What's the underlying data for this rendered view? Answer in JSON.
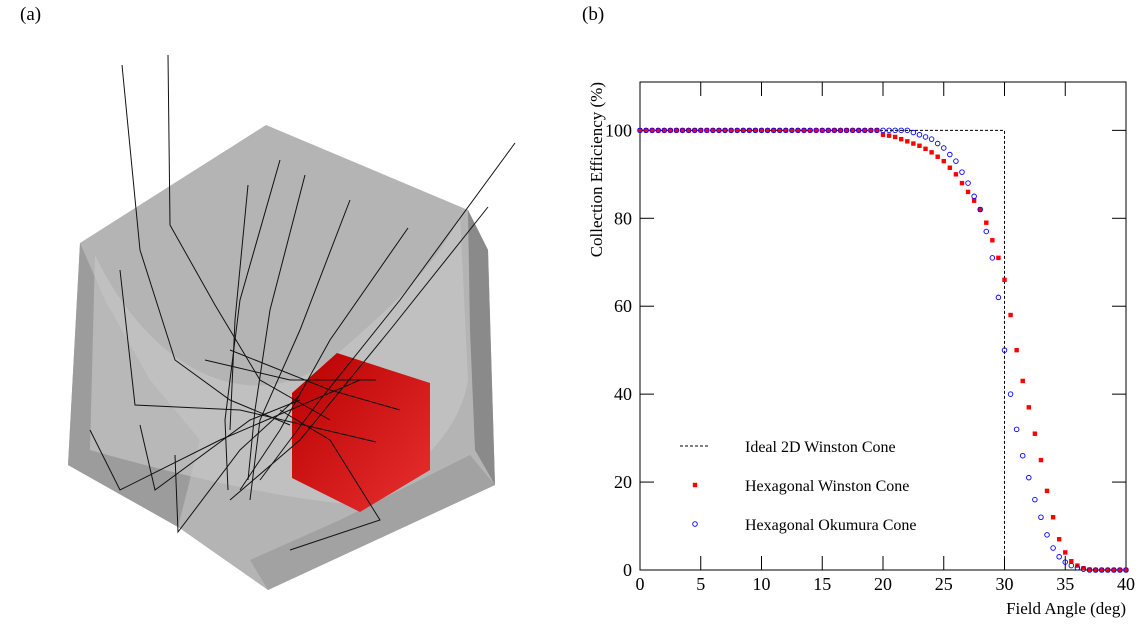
{
  "panel_labels": [
    "(a)",
    "(b)"
  ],
  "chart_data": {
    "type": "scatter",
    "xlabel": "Field Angle (deg)",
    "ylabel": "Collection Efficiency (%)",
    "xlim": [
      0,
      40
    ],
    "ylim": [
      0,
      111
    ],
    "xticks": [
      0,
      5,
      10,
      15,
      20,
      25,
      30,
      35,
      40
    ],
    "yticks": [
      0,
      20,
      40,
      60,
      80,
      100
    ],
    "legend": "lower left",
    "series": [
      {
        "name": "Ideal 2D Winston Cone",
        "type": "line",
        "dash": true,
        "color": "#000000",
        "x": [
          0,
          30,
          30
        ],
        "values": [
          100,
          100,
          0
        ]
      },
      {
        "name": "Hexagonal Winston Cone",
        "type": "scatter",
        "marker": "square",
        "color": "#ff0000",
        "x": [
          0,
          0.5,
          1,
          1.5,
          2,
          2.5,
          3,
          3.5,
          4,
          4.5,
          5,
          5.5,
          6,
          6.5,
          7,
          7.5,
          8,
          8.5,
          9,
          9.5,
          10,
          10.5,
          11,
          11.5,
          12,
          12.5,
          13,
          13.5,
          14,
          14.5,
          15,
          15.5,
          16,
          16.5,
          17,
          17.5,
          18,
          18.5,
          19,
          19.5,
          20,
          20.5,
          21,
          21.5,
          22,
          22.5,
          23,
          23.5,
          24,
          24.5,
          25,
          25.5,
          26,
          26.5,
          27,
          27.5,
          28,
          28.5,
          29,
          29.5,
          30,
          30.5,
          31,
          31.5,
          32,
          32.5,
          33,
          33.5,
          34,
          34.5,
          35,
          35.5,
          36,
          36.5,
          37,
          37.5,
          38,
          38.5,
          39,
          39.5,
          40
        ],
        "values": [
          100,
          100,
          100,
          100,
          100,
          100,
          100,
          100,
          100,
          100,
          100,
          100,
          100,
          100,
          100,
          100,
          100,
          100,
          100,
          100,
          100,
          100,
          100,
          100,
          100,
          100,
          100,
          100,
          100,
          100,
          100,
          100,
          100,
          100,
          100,
          100,
          100,
          100,
          100,
          100,
          99,
          98.8,
          98.5,
          98,
          97.5,
          97,
          96.5,
          95.8,
          95,
          94,
          93,
          91.5,
          90,
          88,
          86,
          84,
          82,
          79,
          75,
          71,
          66,
          58,
          50,
          43,
          37,
          31,
          25,
          18,
          12,
          7,
          4,
          2,
          1,
          0.4,
          0.1,
          0,
          0,
          0,
          0,
          0,
          0
        ]
      },
      {
        "name": "Hexagonal Okumura Cone",
        "type": "scatter",
        "marker": "circle",
        "color": "#0000ff",
        "x": [
          0,
          0.5,
          1,
          1.5,
          2,
          2.5,
          3,
          3.5,
          4,
          4.5,
          5,
          5.5,
          6,
          6.5,
          7,
          7.5,
          8,
          8.5,
          9,
          9.5,
          10,
          10.5,
          11,
          11.5,
          12,
          12.5,
          13,
          13.5,
          14,
          14.5,
          15,
          15.5,
          16,
          16.5,
          17,
          17.5,
          18,
          18.5,
          19,
          19.5,
          20,
          20.5,
          21,
          21.5,
          22,
          22.5,
          23,
          23.5,
          24,
          24.5,
          25,
          25.5,
          26,
          26.5,
          27,
          27.5,
          28,
          28.5,
          29,
          29.5,
          30,
          30.5,
          31,
          31.5,
          32,
          32.5,
          33,
          33.5,
          34,
          34.5,
          35,
          35.5,
          36,
          36.5,
          37,
          37.5,
          38,
          38.5,
          39,
          39.5,
          40
        ],
        "values": [
          100,
          100,
          100,
          100,
          100,
          100,
          100,
          100,
          100,
          100,
          100,
          100,
          100,
          100,
          100,
          100,
          100,
          100,
          100,
          100,
          100,
          100,
          100,
          100,
          100,
          100,
          100,
          100,
          100,
          100,
          100,
          100,
          100,
          100,
          100,
          100,
          100,
          100,
          100,
          100,
          100,
          100,
          100,
          100,
          100,
          99.5,
          99,
          98.5,
          98,
          97,
          96,
          94.5,
          93,
          90.5,
          88,
          85,
          82,
          77,
          71,
          62,
          50,
          40,
          32,
          26,
          21,
          16,
          12,
          8,
          5,
          3,
          1.8,
          1,
          0.5,
          0.2,
          0,
          0,
          0,
          0,
          0,
          0,
          0
        ]
      }
    ]
  }
}
